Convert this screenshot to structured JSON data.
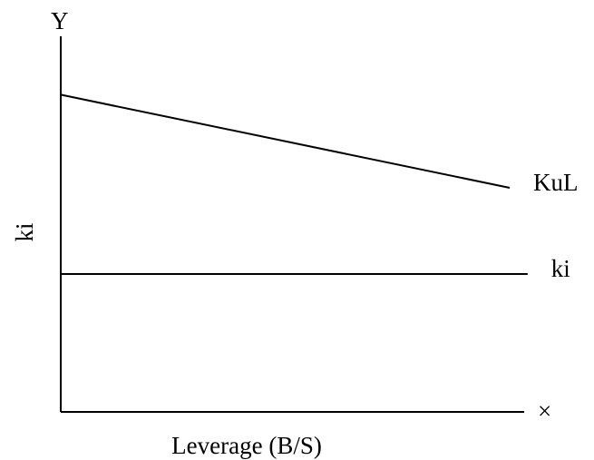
{
  "chart_data": {
    "type": "line",
    "title": "",
    "xlabel": "Leverage (B/S)",
    "ylabel": "ki",
    "y_axis_end_label": "Y",
    "x_axis_end_label": "×",
    "grid": false,
    "legend": "none",
    "x_range": [
      0,
      1
    ],
    "y_range": [
      0,
      1
    ],
    "series": [
      {
        "name": "KuL",
        "x": [
          0,
          1
        ],
        "y": [
          0.92,
          0.65
        ]
      },
      {
        "name": "ki",
        "x": [
          0,
          1.04
        ],
        "y": [
          0.4,
          0.4
        ]
      }
    ],
    "colors": {
      "line": "#000000",
      "axis": "#000000",
      "background": "#ffffff"
    }
  }
}
